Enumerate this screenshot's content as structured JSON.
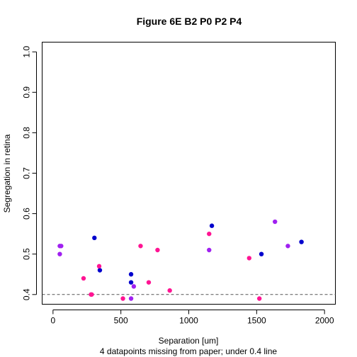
{
  "chart_data": {
    "type": "scatter",
    "title": "Figure 6E B2 P0 P2 P4",
    "xlabel": "Separation [um]",
    "ylabel": "Segregation in retina",
    "footnote": "4 datapoints missing from paper; under 0.4 line",
    "xlim": [
      -80,
      2080
    ],
    "ylim": [
      0.376,
      1.024
    ],
    "xticks": [
      0,
      500,
      1000,
      1500,
      2000
    ],
    "yticks": [
      0.4,
      0.5,
      0.6,
      0.7,
      0.8,
      0.9,
      1.0
    ],
    "xtick_labels": [
      "0",
      "500",
      "1000",
      "1500",
      "2000"
    ],
    "ytick_labels": [
      "0.4",
      "0.5",
      "0.6",
      "0.7",
      "0.8",
      "0.9",
      "1.0"
    ],
    "reference_line": {
      "y": 0.4,
      "style": "dashed"
    },
    "grid": false,
    "series": [
      {
        "color": "#0000cd",
        "x": [
          305,
          345,
          575,
          575,
          1170,
          1535,
          1830
        ],
        "y": [
          0.54,
          0.46,
          0.45,
          0.43,
          0.57,
          0.5,
          0.53
        ]
      },
      {
        "color": "#ff1493",
        "x": [
          225,
          280,
          285,
          340,
          515,
          645,
          705,
          770,
          860,
          1150,
          1445,
          1520
        ],
        "y": [
          0.44,
          0.4,
          0.4,
          0.47,
          0.39,
          0.52,
          0.43,
          0.51,
          0.41,
          0.55,
          0.49,
          0.39
        ]
      },
      {
        "color": "#a020f0",
        "x": [
          50,
          60,
          50,
          575,
          595,
          1150,
          1635,
          1730
        ],
        "y": [
          0.52,
          0.52,
          0.5,
          0.39,
          0.42,
          0.51,
          0.58,
          0.52
        ]
      }
    ]
  }
}
